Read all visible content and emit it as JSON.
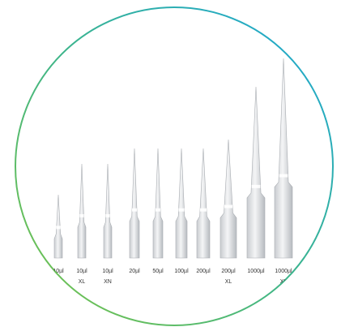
{
  "tips": [
    {
      "label": "10µl"
    },
    {
      "label": "10µl",
      "sublabel": "XL"
    },
    {
      "label": "10µl",
      "sublabel": "XN"
    },
    {
      "label": "20µl"
    },
    {
      "label": "50µl"
    },
    {
      "label": "100µl"
    },
    {
      "label": "200µl"
    },
    {
      "label": "200µl",
      "sublabel": "XL"
    },
    {
      "label": "1000µl"
    },
    {
      "label": "1000µl",
      "sublabel": "XL"
    }
  ]
}
